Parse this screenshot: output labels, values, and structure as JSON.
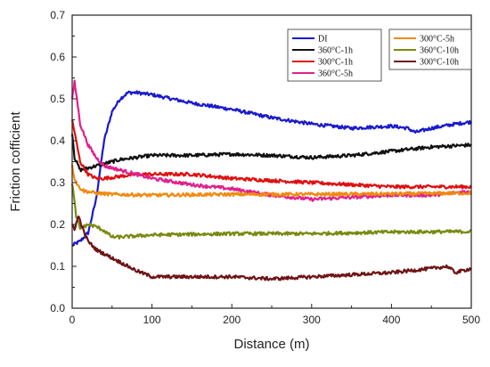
{
  "chart_data": {
    "type": "line",
    "title": "",
    "xlabel": "Distance (m)",
    "ylabel": "Friction cofficient",
    "xlim": [
      0,
      500
    ],
    "ylim": [
      0.0,
      0.7
    ],
    "xticks": [
      "0",
      "100",
      "200",
      "300",
      "400",
      "500"
    ],
    "yticks": [
      "0.0",
      "0.1",
      "0.2",
      "0.3",
      "0.4",
      "0.5",
      "0.6",
      "0.7"
    ],
    "grid": false,
    "legend_placement": "top-right",
    "series": [
      {
        "name": "DI",
        "color": "#1a1acc",
        "x": [
          0,
          10,
          20,
          30,
          40,
          50,
          60,
          70,
          80,
          100,
          150,
          200,
          250,
          300,
          350,
          400,
          420,
          430,
          450,
          480,
          500
        ],
        "y": [
          0.15,
          0.16,
          0.18,
          0.26,
          0.4,
          0.47,
          0.5,
          0.515,
          0.515,
          0.51,
          0.49,
          0.475,
          0.455,
          0.44,
          0.43,
          0.435,
          0.43,
          0.42,
          0.43,
          0.44,
          0.445
        ]
      },
      {
        "name": "360°C-1h",
        "color": "#111111",
        "x": [
          0,
          3,
          10,
          20,
          40,
          60,
          80,
          100,
          150,
          200,
          250,
          300,
          350,
          400,
          450,
          500
        ],
        "y": [
          0.42,
          0.36,
          0.33,
          0.335,
          0.345,
          0.355,
          0.36,
          0.365,
          0.365,
          0.368,
          0.365,
          0.36,
          0.365,
          0.375,
          0.385,
          0.39
        ]
      },
      {
        "name": "300°C-1h",
        "color": "#e01010",
        "x": [
          0,
          5,
          10,
          20,
          30,
          40,
          60,
          80,
          100,
          150,
          200,
          250,
          300,
          350,
          400,
          450,
          500
        ],
        "y": [
          0.45,
          0.4,
          0.35,
          0.32,
          0.31,
          0.31,
          0.315,
          0.32,
          0.32,
          0.32,
          0.31,
          0.305,
          0.3,
          0.295,
          0.29,
          0.29,
          0.29
        ]
      },
      {
        "name": "360°C-5h",
        "color": "#e0208c",
        "x": [
          0,
          3,
          6,
          10,
          20,
          30,
          40,
          60,
          80,
          100,
          150,
          200,
          250,
          300,
          350,
          400,
          450,
          500
        ],
        "y": [
          0.5,
          0.54,
          0.5,
          0.44,
          0.39,
          0.36,
          0.34,
          0.33,
          0.32,
          0.31,
          0.295,
          0.285,
          0.27,
          0.26,
          0.265,
          0.27,
          0.27,
          0.28
        ]
      },
      {
        "name": "300°C-5h",
        "color": "#f08a10",
        "x": [
          0,
          3,
          8,
          15,
          30,
          50,
          100,
          200,
          300,
          400,
          500
        ],
        "y": [
          0.34,
          0.31,
          0.29,
          0.28,
          0.275,
          0.272,
          0.27,
          0.272,
          0.272,
          0.273,
          0.275
        ]
      },
      {
        "name": "360°C-10h",
        "color": "#7a8a10",
        "x": [
          0,
          5,
          10,
          20,
          30,
          40,
          50,
          60,
          100,
          200,
          300,
          400,
          500
        ],
        "y": [
          0.3,
          0.22,
          0.19,
          0.2,
          0.195,
          0.185,
          0.17,
          0.17,
          0.175,
          0.178,
          0.178,
          0.182,
          0.183
        ]
      },
      {
        "name": "300°C-10h",
        "color": "#6e1416",
        "x": [
          0,
          3,
          8,
          15,
          20,
          30,
          50,
          80,
          100,
          150,
          200,
          250,
          300,
          350,
          400,
          450,
          470,
          480,
          500
        ],
        "y": [
          0.2,
          0.19,
          0.22,
          0.18,
          0.16,
          0.14,
          0.12,
          0.09,
          0.075,
          0.075,
          0.075,
          0.07,
          0.075,
          0.08,
          0.085,
          0.095,
          0.1,
          0.085,
          0.095
        ]
      }
    ]
  }
}
